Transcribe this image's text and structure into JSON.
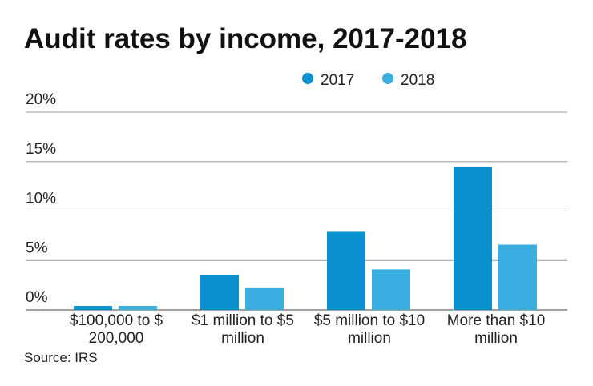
{
  "chart_data": {
    "type": "bar",
    "title": "Audit rates by income, 2017-2018",
    "categories": [
      "$100,000 to $\n200,000",
      "$1 million to $5\nmillion",
      "$5 million to $10\nmillion",
      "More than $10\nmillion"
    ],
    "series": [
      {
        "name": "2017",
        "color": "#0a8fcf",
        "values": [
          0.4,
          3.5,
          7.9,
          14.5
        ]
      },
      {
        "name": "2018",
        "color": "#3aaee0",
        "values": [
          0.4,
          2.2,
          4.1,
          6.6
        ]
      }
    ],
    "ylim": [
      0,
      20
    ],
    "yticks": [
      {
        "value": 0,
        "label": "0%"
      },
      {
        "value": 5,
        "label": "5%"
      },
      {
        "value": 10,
        "label": "10%"
      },
      {
        "value": 15,
        "label": "15%"
      },
      {
        "value": 20,
        "label": "20%"
      }
    ],
    "grid": true,
    "source": "Source: IRS"
  }
}
